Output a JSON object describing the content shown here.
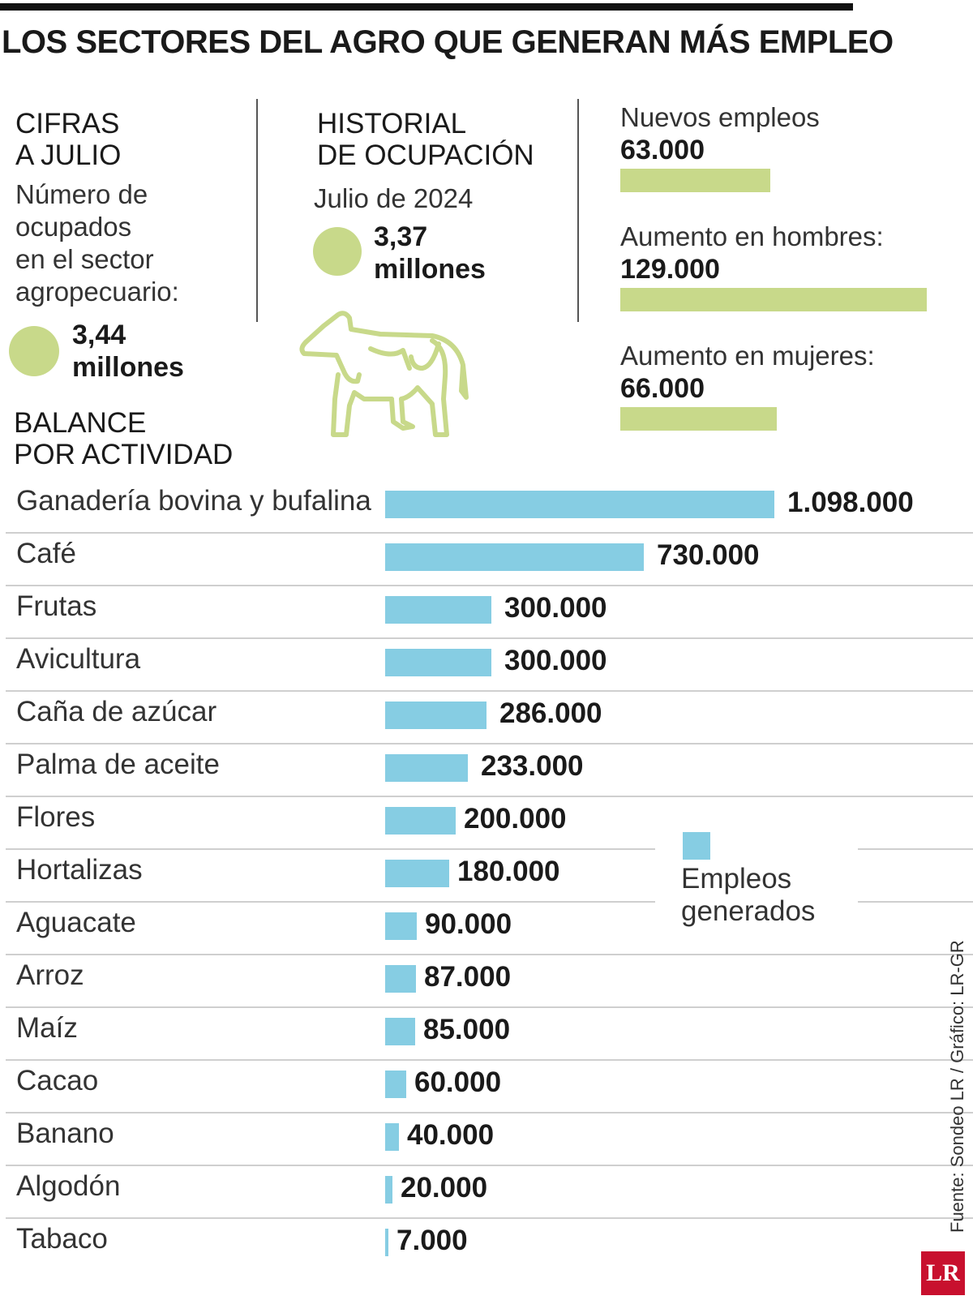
{
  "title": "LOS SECTORES DEL AGRO QUE GENERAN MÁS EMPLEO",
  "cifras": {
    "heading": "CIFRAS\nA JULIO",
    "subtitle": [
      "Número de",
      "ocupados",
      "en el sector",
      "agropecuario:"
    ],
    "value_line1": "3,44",
    "value_line2": "millones"
  },
  "historial": {
    "heading": "HISTORIAL\nDE OCUPACIÓN",
    "date": "Julio de 2024",
    "value_line1": "3,37",
    "value_line2": "millones"
  },
  "stats": [
    {
      "label": "Nuevos empleos",
      "value": "63.000",
      "number": 63000
    },
    {
      "label": "Aumento en hombres:",
      "value": "129.000",
      "number": 129000
    },
    {
      "label": "Aumento en mujeres:",
      "value": "66.000",
      "number": 66000
    }
  ],
  "balance_heading": "BALANCE\nPOR ACTIVIDAD",
  "legend_label": "Empleos\ngenerados",
  "source": "Fuente: Sondeo LR / Gráfico: LR-GR",
  "logo_text": "LR",
  "colors": {
    "bar": "#86cde3",
    "accent": "#c8d98a",
    "logo": "#c8102e"
  },
  "chart_data": {
    "type": "bar",
    "orientation": "horizontal",
    "categories": [
      "Ganadería bovina y bufalina",
      "Café",
      "Frutas",
      "Avicultura",
      "Caña de azúcar",
      "Palma de aceite",
      "Flores",
      "Hortalizas",
      "Aguacate",
      "Arroz",
      "Maíz",
      "Cacao",
      "Banano",
      "Algodón",
      "Tabaco"
    ],
    "values": [
      1098000,
      730000,
      300000,
      300000,
      286000,
      233000,
      200000,
      180000,
      90000,
      87000,
      85000,
      60000,
      40000,
      20000,
      7000
    ],
    "labels": [
      "1.098.000",
      "730.000",
      "300.000",
      "300.000",
      "286.000",
      "233.000",
      "200.000",
      "180.000",
      "90.000",
      "87.000",
      "85.000",
      "60.000",
      "40.000",
      "20.000",
      "7.000"
    ],
    "series": [
      {
        "name": "Empleos generados",
        "values": [
          1098000,
          730000,
          300000,
          300000,
          286000,
          233000,
          200000,
          180000,
          90000,
          87000,
          85000,
          60000,
          40000,
          20000,
          7000
        ]
      }
    ]
  }
}
